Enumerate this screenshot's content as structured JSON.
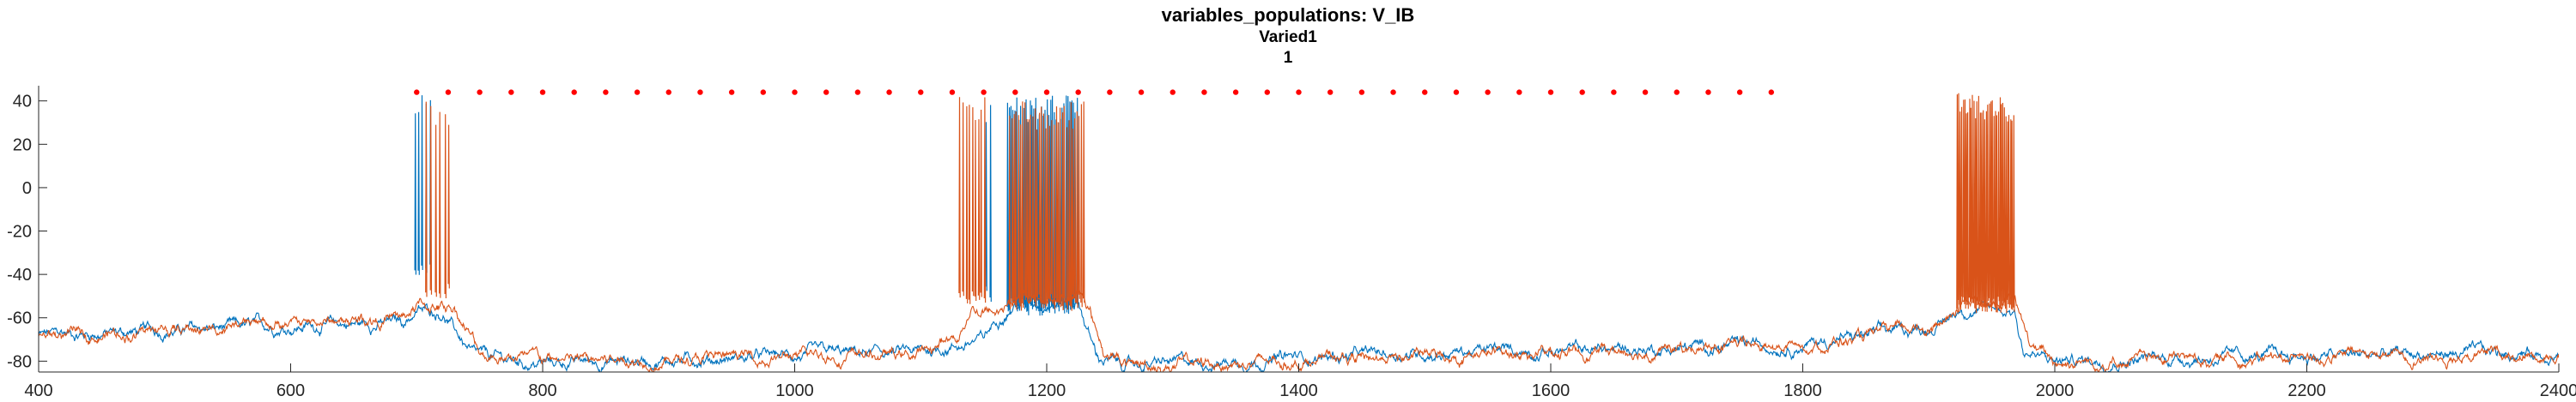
{
  "title": "variables_populations: V_IB",
  "subtitle_line1": "Varied1",
  "subtitle_line2": "1",
  "chart_data": {
    "type": "line",
    "title": "variables_populations: V_IB",
    "xlabel": "",
    "ylabel": "",
    "xlim": [
      400,
      2400
    ],
    "ylim": [
      -85,
      47
    ],
    "x_ticks": [
      400,
      600,
      800,
      1000,
      1200,
      1400,
      1600,
      1800,
      2000,
      2200,
      2400
    ],
    "y_ticks": [
      -80,
      -60,
      -40,
      -20,
      0,
      20,
      40
    ],
    "grid": false,
    "legend": "none",
    "colors": {
      "series1": "#0072BD",
      "series2": "#D95319",
      "markers": "#FF0000",
      "axis": "#262626"
    },
    "series": [
      {
        "color": "#0072BD",
        "baseline_points": [
          [
            400,
            -68
          ],
          [
            690,
            -62
          ],
          [
            700,
            -57
          ],
          [
            720,
            -57
          ],
          [
            745,
            -78
          ],
          [
            790,
            -81
          ],
          [
            1100,
            -76
          ],
          [
            1150,
            -70
          ],
          [
            1165,
            -57
          ],
          [
            1180,
            -52
          ],
          [
            1225,
            -52
          ],
          [
            1240,
            -78
          ],
          [
            1260,
            -82
          ],
          [
            1500,
            -76
          ],
          [
            1700,
            -74
          ],
          [
            1800,
            -72
          ],
          [
            1880,
            -66
          ],
          [
            1910,
            -63
          ],
          [
            1925,
            -56
          ],
          [
            1968,
            -56
          ],
          [
            1975,
            -75
          ],
          [
            1995,
            -80
          ],
          [
            2050,
            -79
          ],
          [
            2400,
            -76
          ]
        ],
        "spike_bursts": [
          [
            697,
            712,
            5,
            44,
            -38
          ],
          [
            1150,
            1158,
            2,
            44,
            -48
          ],
          [
            1168,
            1225,
            38,
            44,
            -54
          ]
        ]
      },
      {
        "color": "#D95319",
        "baseline_points": [
          [
            400,
            -69
          ],
          [
            690,
            -60
          ],
          [
            700,
            -55
          ],
          [
            730,
            -55
          ],
          [
            750,
            -76
          ],
          [
            800,
            -80
          ],
          [
            1100,
            -77
          ],
          [
            1130,
            -68
          ],
          [
            1140,
            -55
          ],
          [
            1160,
            -58
          ],
          [
            1170,
            -52
          ],
          [
            1230,
            -50
          ],
          [
            1245,
            -75
          ],
          [
            1265,
            -82
          ],
          [
            1600,
            -76
          ],
          [
            1800,
            -73
          ],
          [
            1880,
            -67
          ],
          [
            1920,
            -60
          ],
          [
            1925,
            -52
          ],
          [
            1968,
            -52
          ],
          [
            1980,
            -73
          ],
          [
            2000,
            -80
          ],
          [
            2400,
            -76
          ]
        ],
        "spike_bursts": [
          [
            705,
            728,
            6,
            40,
            -47
          ],
          [
            1130,
            1152,
            9,
            44,
            -50
          ],
          [
            1170,
            1230,
            36,
            40,
            -52
          ],
          [
            1922,
            1968,
            38,
            44,
            -53
          ]
        ]
      }
    ],
    "marker_series": {
      "color": "#FF0000",
      "marker": "dot",
      "x": [
        700,
        725,
        750,
        775,
        800,
        825,
        850,
        875,
        900,
        925,
        950,
        975,
        1000,
        1025,
        1050,
        1075,
        1100,
        1125,
        1150,
        1175,
        1200,
        1225,
        1250,
        1275,
        1300,
        1325,
        1350,
        1375,
        1400,
        1425,
        1450,
        1475,
        1500,
        1525,
        1550,
        1575,
        1600,
        1625,
        1650,
        1675,
        1700,
        1725,
        1750,
        1775
      ],
      "y": 44
    }
  }
}
